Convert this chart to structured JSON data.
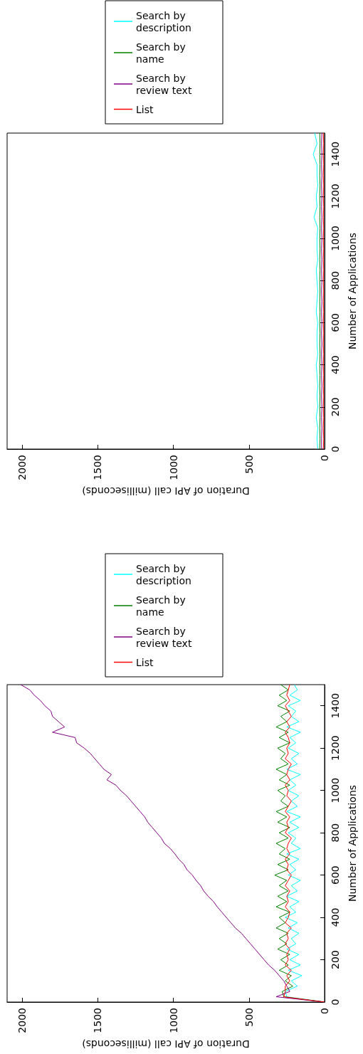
{
  "chart_data": [
    {
      "type": "line",
      "orientation": "horizontal",
      "xlabel": "Duration of API call (milliseconds)",
      "ylabel": "Number of Applications",
      "xlim": [
        2100,
        0
      ],
      "xticks": [
        2000,
        1500,
        1000,
        500,
        0
      ],
      "ylim": [
        0,
        1500
      ],
      "yticks": [
        0,
        200,
        400,
        600,
        800,
        1000,
        1200,
        1400
      ],
      "grid": false,
      "legend": "top left",
      "marker": "none",
      "line_style": "solid",
      "x": [
        0,
        50,
        100,
        150,
        200,
        250,
        300,
        350,
        400,
        450,
        500,
        550,
        600,
        650,
        700,
        750,
        800,
        850,
        900,
        950,
        1000,
        1050,
        1100,
        1150,
        1200,
        1250,
        1300,
        1350,
        1400,
        1450,
        1500
      ],
      "series": [
        {
          "name": "Search by description",
          "color": "#00ffff",
          "values": [
            45,
            50,
            45,
            55,
            45,
            50,
            45,
            50,
            55,
            45,
            50,
            50,
            45,
            55,
            50,
            45,
            50,
            55,
            45,
            50,
            50,
            45,
            70,
            50,
            55,
            45,
            50,
            50,
            75,
            50,
            65
          ]
        },
        {
          "name": "Search by name",
          "color": "#008000",
          "values": [
            32,
            30,
            32,
            30,
            32,
            30,
            32,
            30,
            32,
            30,
            32,
            30,
            32,
            30,
            32,
            30,
            32,
            30,
            32,
            30,
            32,
            30,
            32,
            30,
            32,
            30,
            32,
            30,
            32,
            30,
            32
          ]
        },
        {
          "name": "Search by review text",
          "color": "#800080",
          "values": [
            20,
            20,
            18,
            20,
            18,
            20,
            18,
            20,
            18,
            20,
            18,
            20,
            18,
            20,
            18,
            20,
            18,
            20,
            18,
            20,
            18,
            20,
            18,
            20,
            18,
            20,
            18,
            20,
            18,
            20,
            18
          ]
        },
        {
          "name": "List",
          "color": "#ff0000",
          "values": [
            8,
            6,
            8,
            6,
            8,
            6,
            8,
            6,
            8,
            6,
            8,
            6,
            8,
            6,
            8,
            6,
            8,
            6,
            8,
            6,
            8,
            6,
            8,
            6,
            8,
            6,
            8,
            6,
            8,
            6,
            8
          ]
        }
      ]
    },
    {
      "type": "line",
      "orientation": "horizontal",
      "xlabel": "Duration of API call (milliseconds)",
      "ylabel": "Number of Applications",
      "xlim": [
        2100,
        0
      ],
      "xticks": [
        2000,
        1500,
        1000,
        500,
        0
      ],
      "ylim": [
        0,
        1500
      ],
      "yticks": [
        0,
        200,
        400,
        600,
        800,
        1000,
        1200,
        1400
      ],
      "grid": false,
      "legend": "top left",
      "marker": "none",
      "line_style": "solid",
      "x": [
        0,
        25,
        50,
        75,
        100,
        125,
        150,
        175,
        200,
        225,
        250,
        275,
        300,
        325,
        350,
        375,
        400,
        425,
        450,
        475,
        500,
        525,
        550,
        575,
        600,
        625,
        650,
        675,
        700,
        725,
        750,
        775,
        800,
        825,
        850,
        875,
        900,
        925,
        950,
        975,
        1000,
        1025,
        1050,
        1075,
        1100,
        1125,
        1150,
        1175,
        1200,
        1225,
        1250,
        1275,
        1300,
        1325,
        1350,
        1375,
        1400,
        1425,
        1450,
        1475,
        1500
      ],
      "series": [
        {
          "name": "Search by description",
          "color": "#00ffff",
          "values": [
            0,
            250,
            260,
            180,
            220,
            150,
            240,
            160,
            230,
            170,
            250,
            190,
            220,
            170,
            240,
            180,
            260,
            190,
            230,
            170,
            250,
            180,
            220,
            160,
            240,
            190,
            230,
            170,
            250,
            160,
            220,
            190,
            240,
            170,
            230,
            160,
            250,
            180,
            220,
            170,
            240,
            190,
            230,
            160,
            250,
            180,
            220,
            170,
            240,
            190,
            230,
            160,
            250,
            170,
            220,
            190,
            240,
            160,
            230,
            180,
            200
          ]
        },
        {
          "name": "Search by name",
          "color": "#008000",
          "values": [
            0,
            270,
            280,
            210,
            260,
            220,
            300,
            240,
            290,
            230,
            310,
            250,
            300,
            240,
            320,
            260,
            300,
            230,
            320,
            250,
            310,
            240,
            300,
            250,
            330,
            240,
            310,
            230,
            300,
            260,
            320,
            240,
            300,
            230,
            310,
            250,
            320,
            240,
            290,
            260,
            310,
            230,
            300,
            250,
            320,
            240,
            290,
            260,
            310,
            230,
            300,
            240,
            320,
            250,
            290,
            230,
            310,
            250,
            300,
            240,
            290
          ]
        },
        {
          "name": "Search by review text",
          "color": "#800080",
          "values": [
            0,
            320,
            230,
            250,
            270,
            300,
            330,
            370,
            400,
            430,
            460,
            490,
            520,
            550,
            590,
            620,
            650,
            680,
            710,
            735,
            770,
            800,
            820,
            850,
            875,
            910,
            930,
            965,
            990,
            1020,
            1060,
            1080,
            1110,
            1140,
            1170,
            1190,
            1220,
            1250,
            1280,
            1310,
            1350,
            1380,
            1440,
            1410,
            1460,
            1490,
            1520,
            1550,
            1590,
            1640,
            1650,
            1800,
            1720,
            1760,
            1800,
            1810,
            1850,
            1880,
            1920,
            1950,
            2010
          ]
        },
        {
          "name": "List",
          "color": "#ff0000",
          "values": [
            0,
            270,
            260,
            260,
            230,
            250,
            220,
            260,
            240,
            250,
            230,
            260,
            240,
            250,
            220,
            260,
            240,
            230,
            260,
            240,
            250,
            230,
            260,
            240,
            220,
            250,
            240,
            260,
            230,
            250,
            240,
            220,
            260,
            240,
            250,
            230,
            260,
            240,
            220,
            250,
            240,
            260,
            230,
            250,
            240,
            220,
            260,
            240,
            250,
            230,
            240,
            260,
            230,
            250,
            220,
            240,
            260,
            230,
            250,
            240,
            230
          ]
        }
      ]
    }
  ]
}
